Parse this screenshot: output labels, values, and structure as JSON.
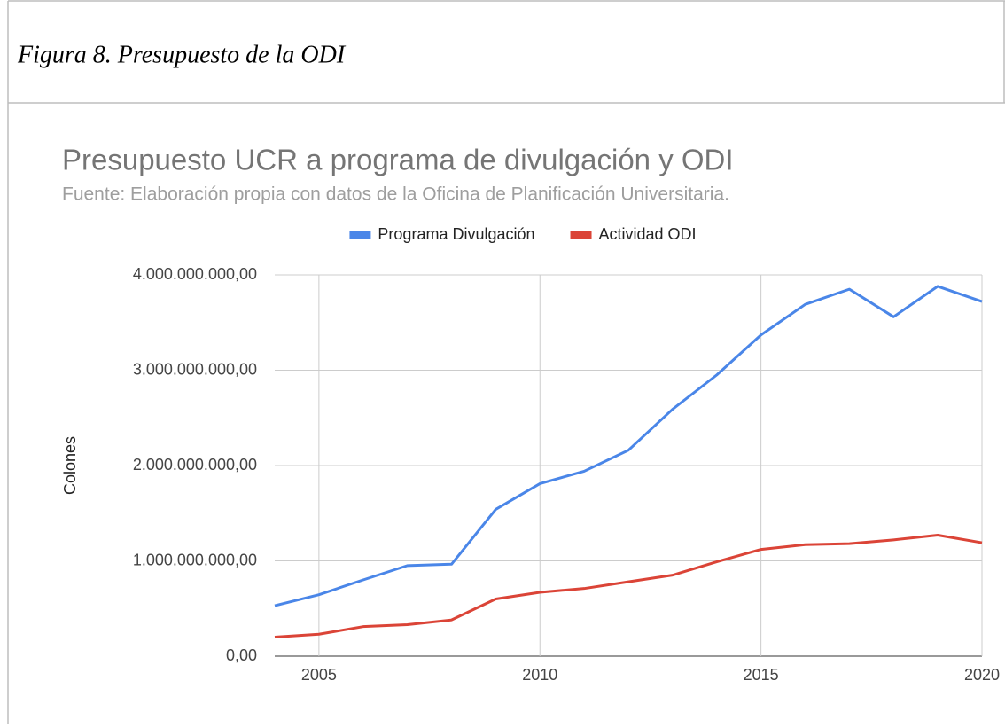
{
  "figure_caption": "Figura 8. Presupuesto de la ODI",
  "chart_data": {
    "type": "line",
    "title": "Presupuesto UCR a programa de divulgación y ODI",
    "subtitle": "Fuente: Elaboración propia con datos de la Oficina de Planificación Universitaria.",
    "y_label": "Colones",
    "x": [
      2004,
      2005,
      2006,
      2007,
      2008,
      2009,
      2010,
      2011,
      2012,
      2013,
      2014,
      2015,
      2016,
      2017,
      2018,
      2019,
      2020
    ],
    "series": [
      {
        "name": "Programa Divulgación",
        "color": "#4a86e8",
        "values": [
          530000000,
          645000000,
          800000000,
          950000000,
          965000000,
          1540000000,
          1810000000,
          1940000000,
          2160000000,
          2590000000,
          2950000000,
          3370000000,
          3690000000,
          3850000000,
          3560000000,
          3880000000,
          3720000000
        ]
      },
      {
        "name": "Actividad ODI",
        "color": "#db4437",
        "values": [
          200000000,
          230000000,
          310000000,
          330000000,
          380000000,
          600000000,
          670000000,
          710000000,
          780000000,
          850000000,
          990000000,
          1120000000,
          1170000000,
          1180000000,
          1220000000,
          1270000000,
          1190000000
        ]
      }
    ],
    "xlim": [
      2004,
      2020
    ],
    "xticks": [
      2005,
      2010,
      2015,
      2020
    ],
    "ylim": [
      0,
      4000000000
    ],
    "yticks": [
      {
        "value": 0,
        "label": "0,00"
      },
      {
        "value": 1000000000,
        "label": "1.000.000.000,00"
      },
      {
        "value": 2000000000,
        "label": "2.000.000.000,00"
      },
      {
        "value": 3000000000,
        "label": "3.000.000.000,00"
      },
      {
        "value": 4000000000,
        "label": "4.000.000.000,00"
      }
    ],
    "grid": true,
    "legend": "top"
  }
}
